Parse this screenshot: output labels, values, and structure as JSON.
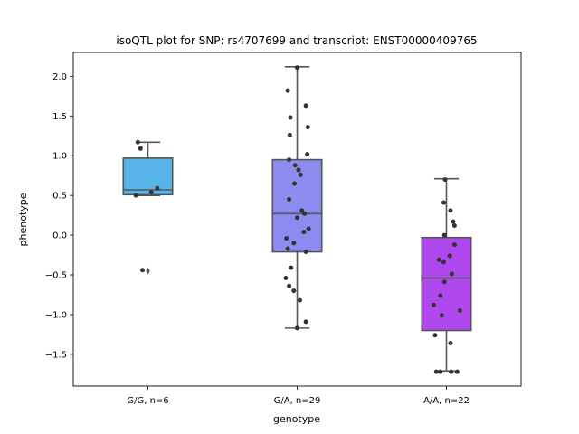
{
  "chart_data": {
    "type": "box",
    "title": "isoQTL plot for SNP: rs4707699 and transcript: ENST00000409765",
    "xlabel": "genotype",
    "ylabel": "phenotype",
    "ylim": [
      -1.9,
      2.3
    ],
    "yticks": [
      2.0,
      1.5,
      1.0,
      0.5,
      0.0,
      -0.5,
      -1.0,
      -1.5
    ],
    "ytick_labels": [
      "2.0",
      "1.5",
      "1.0",
      "0.5",
      "0.0",
      "−0.5",
      "−1.0",
      "−1.5"
    ],
    "grid": false,
    "categories": [
      "G/G, n=6",
      "G/A, n=29",
      "A/A, n=22"
    ],
    "colors": [
      "#56b4e9",
      "#8c8cf0",
      "#b048f0"
    ],
    "boxes": [
      {
        "q1": 0.51,
        "median": 0.57,
        "q3": 0.97,
        "whisker_low": 0.5,
        "whisker_high": 1.17,
        "outliers": [
          -0.45
        ]
      },
      {
        "q1": -0.21,
        "median": 0.27,
        "q3": 0.95,
        "whisker_low": -1.17,
        "whisker_high": 2.12,
        "outliers": []
      },
      {
        "q1": -1.2,
        "median": -0.54,
        "q3": -0.03,
        "whisker_low": -1.71,
        "whisker_high": 0.71,
        "outliers": []
      }
    ],
    "points": [
      [
        [
          -0.15,
          1.17
        ],
        [
          -0.11,
          1.09
        ],
        [
          -0.18,
          0.5
        ],
        [
          0.05,
          0.54
        ],
        [
          0.14,
          0.59
        ],
        [
          -0.08,
          -0.44
        ]
      ],
      [
        [
          0.0,
          2.11
        ],
        [
          -0.14,
          1.82
        ],
        [
          0.13,
          1.63
        ],
        [
          -0.1,
          1.48
        ],
        [
          0.16,
          1.36
        ],
        [
          -0.11,
          1.26
        ],
        [
          0.15,
          1.02
        ],
        [
          -0.12,
          0.95
        ],
        [
          -0.03,
          0.88
        ],
        [
          0.02,
          0.82
        ],
        [
          0.05,
          0.76
        ],
        [
          -0.04,
          0.65
        ],
        [
          -0.12,
          0.45
        ],
        [
          0.07,
          0.31
        ],
        [
          0.11,
          0.27
        ],
        [
          0.0,
          0.22
        ],
        [
          0.17,
          0.08
        ],
        [
          0.1,
          0.04
        ],
        [
          -0.16,
          -0.04
        ],
        [
          -0.14,
          -0.17
        ],
        [
          -0.05,
          -0.1
        ],
        [
          0.13,
          -0.21
        ],
        [
          -0.09,
          -0.41
        ],
        [
          -0.17,
          -0.54
        ],
        [
          -0.12,
          -0.64
        ],
        [
          -0.05,
          -0.7
        ],
        [
          0.04,
          -0.82
        ],
        [
          0.13,
          -1.09
        ],
        [
          0.0,
          -1.17
        ]
      ],
      [
        [
          -0.02,
          0.7
        ],
        [
          -0.04,
          0.41
        ],
        [
          0.06,
          0.31
        ],
        [
          0.1,
          0.17
        ],
        [
          0.12,
          0.12
        ],
        [
          -0.03,
          0.0
        ],
        [
          0.12,
          -0.12
        ],
        [
          0.05,
          -0.26
        ],
        [
          -0.11,
          -0.31
        ],
        [
          -0.04,
          -0.34
        ],
        [
          0.08,
          -0.49
        ],
        [
          -0.03,
          -0.59
        ],
        [
          -0.09,
          -0.76
        ],
        [
          -0.19,
          -0.88
        ],
        [
          0.2,
          -0.95
        ],
        [
          -0.07,
          -1.01
        ],
        [
          -0.17,
          -1.26
        ],
        [
          0.06,
          -1.36
        ],
        [
          -0.15,
          -1.72
        ],
        [
          -0.09,
          -1.72
        ],
        [
          0.07,
          -1.72
        ],
        [
          0.16,
          -1.72
        ]
      ]
    ]
  }
}
